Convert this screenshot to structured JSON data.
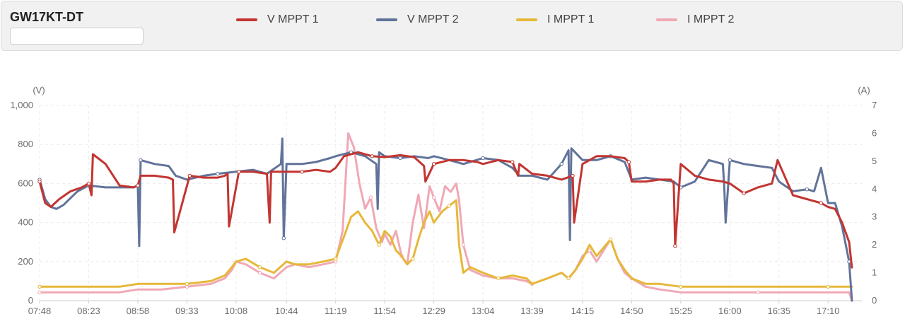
{
  "header": {
    "device_name": "GW17KT-DT",
    "search_value": ""
  },
  "chart_data": {
    "type": "line",
    "title": "",
    "ylabel_left": "(V)",
    "ylabel_right": "(A)",
    "ylim_left": [
      0,
      1000
    ],
    "ylim_right": [
      0,
      7
    ],
    "yticks_left": [
      "0",
      "200",
      "400",
      "600",
      "800",
      "1,000"
    ],
    "yticks_right": [
      "0",
      "1",
      "2",
      "3",
      "4",
      "5",
      "6",
      "7"
    ],
    "xticks": [
      "07:48",
      "08:23",
      "08:58",
      "09:33",
      "10:08",
      "10:44",
      "11:19",
      "11:54",
      "12:29",
      "13:04",
      "13:39",
      "14:15",
      "14:50",
      "15:25",
      "16:00",
      "16:35",
      "17:10"
    ],
    "grid": true,
    "legend_position": "top",
    "series": [
      {
        "name": "V MPPT 1",
        "axis": "left",
        "color": "#c23531",
        "x": [
          "07:48",
          "07:52",
          "07:56",
          "08:02",
          "08:10",
          "08:18",
          "08:23",
          "08:25",
          "08:26",
          "08:35",
          "08:45",
          "08:55",
          "08:58",
          "09:00",
          "09:10",
          "09:20",
          "09:23",
          "09:24",
          "09:35",
          "09:45",
          "09:55",
          "10:00",
          "10:02",
          "10:03",
          "10:10",
          "10:20",
          "10:30",
          "10:32",
          "10:33",
          "10:44",
          "10:55",
          "11:05",
          "11:15",
          "11:19",
          "11:25",
          "11:35",
          "11:45",
          "11:54",
          "12:05",
          "12:15",
          "12:22",
          "12:23",
          "12:29",
          "12:40",
          "12:50",
          "13:00",
          "13:04",
          "13:15",
          "13:25",
          "13:29",
          "13:30",
          "13:39",
          "13:50",
          "14:00",
          "14:08",
          "14:09",
          "14:15",
          "14:25",
          "14:35",
          "14:45",
          "14:48",
          "14:50",
          "15:00",
          "15:10",
          "15:18",
          "15:20",
          "15:21",
          "15:25",
          "15:35",
          "15:45",
          "15:55",
          "16:00",
          "16:10",
          "16:20",
          "16:30",
          "16:34",
          "16:45",
          "16:55",
          "17:05",
          "17:10",
          "17:15",
          "17:20",
          "17:25",
          "17:27"
        ],
        "values": [
          610,
          500,
          480,
          520,
          560,
          580,
          600,
          540,
          750,
          700,
          590,
          580,
          590,
          640,
          640,
          630,
          620,
          350,
          640,
          630,
          630,
          640,
          650,
          380,
          660,
          660,
          650,
          400,
          660,
          660,
          660,
          670,
          660,
          680,
          740,
          760,
          740,
          735,
          745,
          735,
          690,
          610,
          700,
          720,
          720,
          710,
          700,
          720,
          710,
          640,
          700,
          650,
          640,
          620,
          640,
          400,
          700,
          740,
          740,
          730,
          710,
          610,
          610,
          620,
          620,
          600,
          280,
          700,
          640,
          620,
          610,
          600,
          550,
          580,
          600,
          720,
          540,
          520,
          500,
          480,
          470,
          400,
          300,
          170
        ]
      },
      {
        "name": "V MPPT 2",
        "axis": "left",
        "color": "#61739a",
        "x": [
          "07:48",
          "07:52",
          "07:56",
          "08:00",
          "08:05",
          "08:15",
          "08:23",
          "08:35",
          "08:45",
          "08:55",
          "08:58",
          "08:59",
          "09:00",
          "09:10",
          "09:20",
          "09:25",
          "09:33",
          "09:45",
          "09:55",
          "10:08",
          "10:20",
          "10:30",
          "10:40",
          "10:41",
          "10:42",
          "10:44",
          "10:55",
          "11:05",
          "11:15",
          "11:19",
          "11:30",
          "11:40",
          "11:48",
          "11:49",
          "11:50",
          "11:54",
          "12:05",
          "12:15",
          "12:25",
          "12:29",
          "12:40",
          "12:50",
          "13:04",
          "13:15",
          "13:25",
          "13:30",
          "13:39",
          "13:50",
          "14:00",
          "14:05",
          "14:06",
          "14:07",
          "14:15",
          "14:25",
          "14:35",
          "14:45",
          "14:50",
          "15:00",
          "15:10",
          "15:20",
          "15:25",
          "15:35",
          "15:45",
          "15:55",
          "15:56",
          "15:57",
          "16:00",
          "16:10",
          "16:20",
          "16:30",
          "16:35",
          "16:45",
          "16:55",
          "17:00",
          "17:05",
          "17:10",
          "17:15",
          "17:20",
          "17:25",
          "17:27"
        ],
        "values": [
          620,
          520,
          480,
          470,
          490,
          560,
          590,
          580,
          580,
          580,
          590,
          280,
          720,
          700,
          690,
          640,
          620,
          640,
          650,
          660,
          670,
          650,
          700,
          830,
          320,
          700,
          700,
          710,
          730,
          740,
          760,
          740,
          700,
          470,
          760,
          740,
          730,
          740,
          730,
          740,
          720,
          700,
          730,
          720,
          680,
          640,
          640,
          620,
          700,
          770,
          310,
          780,
          720,
          720,
          740,
          710,
          620,
          630,
          620,
          610,
          580,
          610,
          720,
          700,
          580,
          400,
          720,
          700,
          690,
          680,
          610,
          560,
          570,
          560,
          680,
          500,
          500,
          380,
          200,
          0
        ]
      },
      {
        "name": "I MPPT 1",
        "axis": "right",
        "color": "#e6b83a",
        "x": [
          "07:48",
          "08:10",
          "08:23",
          "08:45",
          "08:58",
          "09:15",
          "09:33",
          "09:50",
          "10:00",
          "10:05",
          "10:08",
          "10:15",
          "10:25",
          "10:35",
          "10:44",
          "10:50",
          "11:00",
          "11:10",
          "11:19",
          "11:25",
          "11:30",
          "11:35",
          "11:40",
          "11:45",
          "11:50",
          "11:54",
          "11:58",
          "12:02",
          "12:06",
          "12:10",
          "12:14",
          "12:18",
          "12:22",
          "12:26",
          "12:29",
          "12:35",
          "12:40",
          "12:45",
          "12:47",
          "12:50",
          "12:55",
          "13:04",
          "13:15",
          "13:25",
          "13:35",
          "13:39",
          "13:50",
          "14:00",
          "14:05",
          "14:10",
          "14:15",
          "14:20",
          "14:25",
          "14:30",
          "14:35",
          "14:40",
          "14:45",
          "14:50",
          "15:00",
          "15:10",
          "15:25",
          "15:40",
          "16:00",
          "16:20",
          "16:35",
          "16:50",
          "17:10",
          "17:27"
        ],
        "values": [
          0.5,
          0.5,
          0.5,
          0.5,
          0.6,
          0.6,
          0.6,
          0.7,
          0.9,
          1.2,
          1.4,
          1.5,
          1.2,
          1.0,
          1.4,
          1.3,
          1.3,
          1.4,
          1.5,
          2.3,
          3.0,
          3.2,
          2.8,
          2.5,
          2.0,
          2.5,
          2.3,
          1.8,
          1.6,
          1.3,
          1.5,
          2.2,
          2.8,
          3.2,
          2.8,
          3.2,
          3.4,
          3.6,
          2.0,
          1.0,
          1.2,
          1.0,
          0.8,
          0.9,
          0.8,
          0.6,
          0.8,
          1.0,
          0.8,
          1.1,
          1.5,
          2.0,
          1.6,
          1.9,
          2.2,
          1.5,
          1.1,
          0.8,
          0.6,
          0.6,
          0.5,
          0.5,
          0.5,
          0.5,
          0.5,
          0.5,
          0.5,
          0.5
        ]
      },
      {
        "name": "I MPPT 2",
        "axis": "right",
        "color": "#f0a8b5",
        "x": [
          "07:48",
          "08:10",
          "08:23",
          "08:45",
          "08:58",
          "09:15",
          "09:33",
          "09:50",
          "10:00",
          "10:05",
          "10:08",
          "10:15",
          "10:25",
          "10:35",
          "10:44",
          "10:50",
          "11:00",
          "11:10",
          "11:19",
          "11:24",
          "11:28",
          "11:32",
          "11:36",
          "11:40",
          "11:44",
          "11:48",
          "11:52",
          "11:54",
          "11:58",
          "12:02",
          "12:06",
          "12:10",
          "12:14",
          "12:18",
          "12:22",
          "12:26",
          "12:29",
          "12:33",
          "12:37",
          "12:41",
          "12:45",
          "12:47",
          "12:50",
          "12:55",
          "13:04",
          "13:15",
          "13:25",
          "13:35",
          "13:39",
          "13:50",
          "14:00",
          "14:05",
          "14:10",
          "14:15",
          "14:20",
          "14:25",
          "14:30",
          "14:35",
          "14:40",
          "14:45",
          "14:50",
          "15:00",
          "15:10",
          "15:25",
          "15:40",
          "16:00",
          "16:20",
          "16:35",
          "16:50",
          "17:10",
          "17:25",
          "17:27"
        ],
        "values": [
          0.3,
          0.3,
          0.3,
          0.3,
          0.4,
          0.4,
          0.5,
          0.6,
          0.8,
          1.1,
          1.4,
          1.3,
          1.0,
          0.8,
          1.2,
          1.3,
          1.2,
          1.3,
          1.4,
          2.5,
          6.0,
          5.5,
          4.2,
          3.3,
          3.7,
          2.6,
          2.1,
          2.4,
          2.0,
          2.5,
          1.6,
          1.3,
          2.8,
          3.8,
          2.6,
          4.1,
          3.7,
          3.2,
          4.1,
          3.9,
          4.2,
          3.6,
          2.0,
          1.1,
          0.9,
          0.8,
          0.8,
          0.7,
          0.6,
          0.8,
          1.0,
          0.8,
          1.1,
          1.6,
          1.8,
          1.4,
          1.8,
          2.2,
          1.5,
          1.0,
          0.8,
          0.5,
          0.4,
          0.3,
          0.3,
          0.3,
          0.3,
          0.3,
          0.3,
          0.3,
          0.3,
          0.0
        ]
      }
    ]
  }
}
